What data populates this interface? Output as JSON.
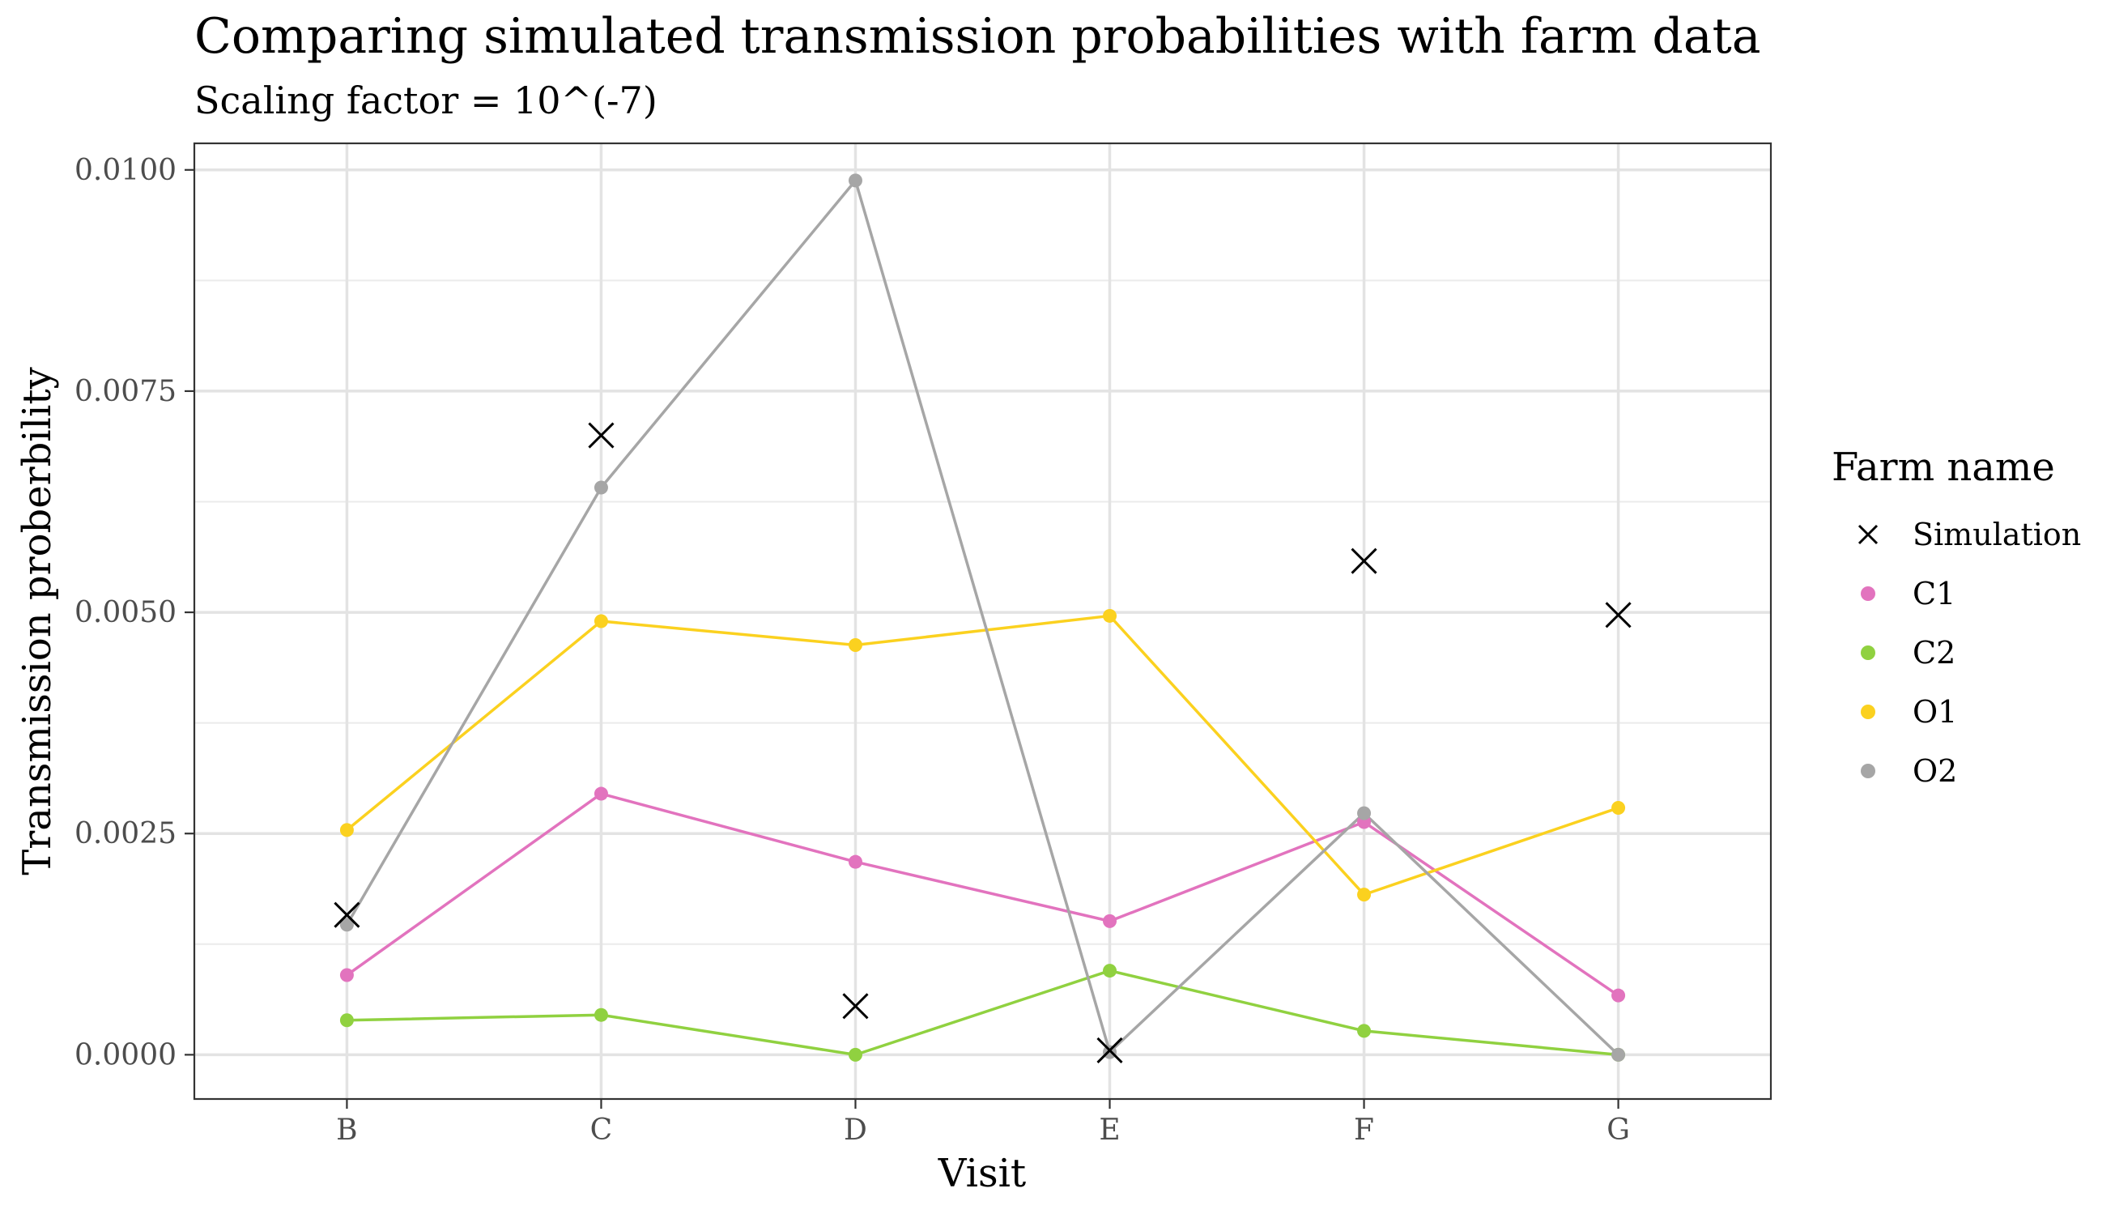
{
  "chart_data": {
    "type": "line",
    "title": "Comparing simulated transmission probabilities with farm data",
    "subtitle": "Scaling factor = 10^(-7)",
    "xlabel": "Visit",
    "ylabel": "Transmission proberbility",
    "categories": [
      "B",
      "C",
      "D",
      "E",
      "F",
      "G"
    ],
    "ylim": [
      -0.0005,
      0.0103
    ],
    "y_ticks": [
      0.0,
      0.0025,
      0.005,
      0.0075,
      0.01
    ],
    "y_tick_labels": [
      "0.0000",
      "0.0025",
      "0.0050",
      "0.0075",
      "0.0100"
    ],
    "grid": true,
    "legend": {
      "title": "Farm name",
      "placement": "right"
    },
    "simulation": {
      "name": "Simulation",
      "color": "#000000",
      "values": [
        0.00158,
        0.007,
        0.00055,
        5e-05,
        0.00558,
        0.00497
      ]
    },
    "series": [
      {
        "name": "C1",
        "color": "#E273BE",
        "values": [
          0.0009,
          0.00295,
          0.00218,
          0.00151,
          0.00263,
          0.00067
        ]
      },
      {
        "name": "C2",
        "color": "#90D140",
        "values": [
          0.00039,
          0.00045,
          0.0,
          0.00095,
          0.00027,
          0.0
        ]
      },
      {
        "name": "O1",
        "color": "#FBD11F",
        "values": [
          0.00254,
          0.0049,
          0.00463,
          0.00496,
          0.00181,
          0.00279
        ]
      },
      {
        "name": "O2",
        "color": "#A6A6A6",
        "values": [
          0.00147,
          0.00641,
          0.00988,
          3e-05,
          0.00273,
          0.0
        ]
      }
    ]
  }
}
